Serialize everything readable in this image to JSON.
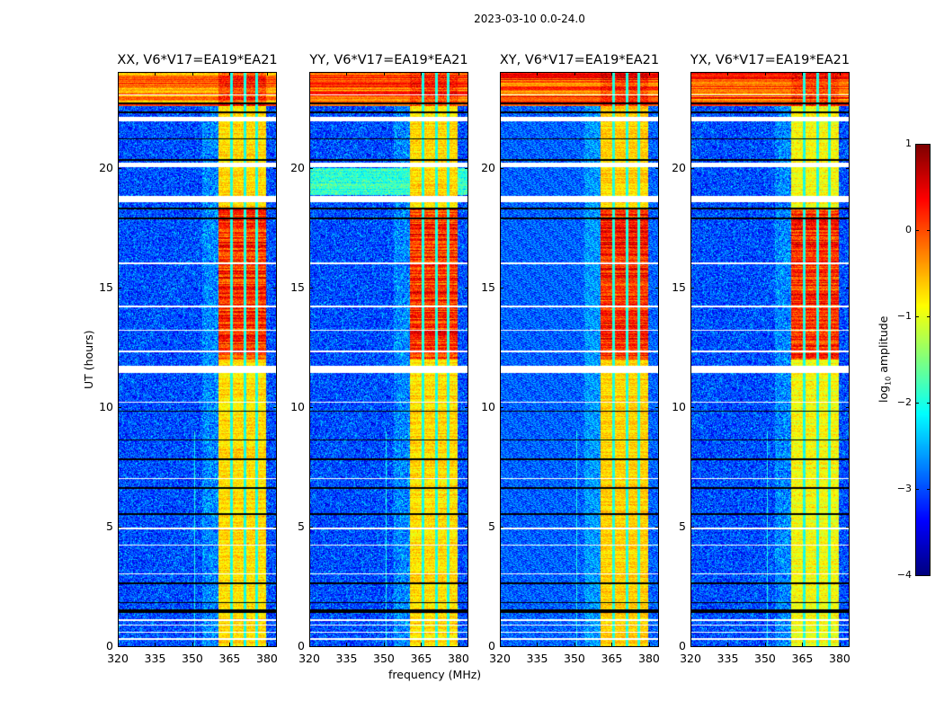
{
  "chart_data": {
    "type": "heatmap",
    "title": "2023-03-10 0.0-24.0",
    "xlabel": "frequency (MHz)",
    "ylabel": "UT (hours)",
    "xlim": [
      320,
      384
    ],
    "ylim": [
      0,
      24
    ],
    "xticks": [
      "320",
      "335",
      "350",
      "365",
      "380"
    ],
    "xtick_values": [
      320,
      335,
      350,
      365,
      380
    ],
    "yticks": [
      "0",
      "5",
      "10",
      "15",
      "20"
    ],
    "ytick_values": [
      0,
      5,
      10,
      15,
      20
    ],
    "panels": [
      {
        "title": "XX, V6*V17=EA19*EA21"
      },
      {
        "title": "YY, V6*V17=EA19*EA21"
      },
      {
        "title": "XY, V6*V17=EA19*EA21"
      },
      {
        "title": "YX, V6*V17=EA19*EA21"
      }
    ],
    "colorbar": {
      "colormap": "jet",
      "range": [
        -4,
        1
      ],
      "ticks": [
        "1",
        "0",
        "−1",
        "−2",
        "−3",
        "−4"
      ],
      "tick_values": [
        1,
        0,
        -1,
        -2,
        -3,
        -4
      ],
      "label_prefix": "log",
      "label_sub": "10",
      "label_suffix": " amplitude"
    }
  }
}
